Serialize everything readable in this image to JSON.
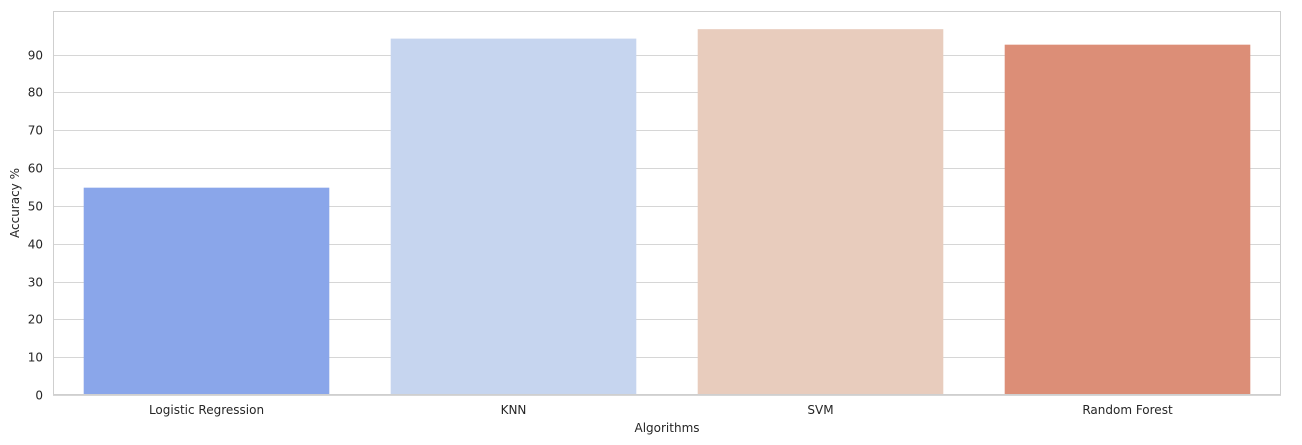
{
  "chart_data": {
    "type": "bar",
    "categories": [
      "Logistic Regression",
      "KNN",
      "SVM",
      "Random Forest"
    ],
    "values": [
      54.8,
      94.2,
      96.7,
      92.6
    ],
    "colors": [
      "#8aa6ea",
      "#c6d5ef",
      "#e8ccbd",
      "#dc8e77"
    ],
    "xlabel": "Algorithms",
    "ylabel": "Accuracy %",
    "ylim": [
      0,
      101.5
    ],
    "yticks": [
      "0",
      "10",
      "20",
      "30",
      "40",
      "50",
      "60",
      "70",
      "80",
      "90"
    ],
    "grid": "horizontal",
    "style": {
      "grid_color": "#d6d6d6",
      "frame_color": "#cfcfcf",
      "text_color": "#262626"
    }
  }
}
